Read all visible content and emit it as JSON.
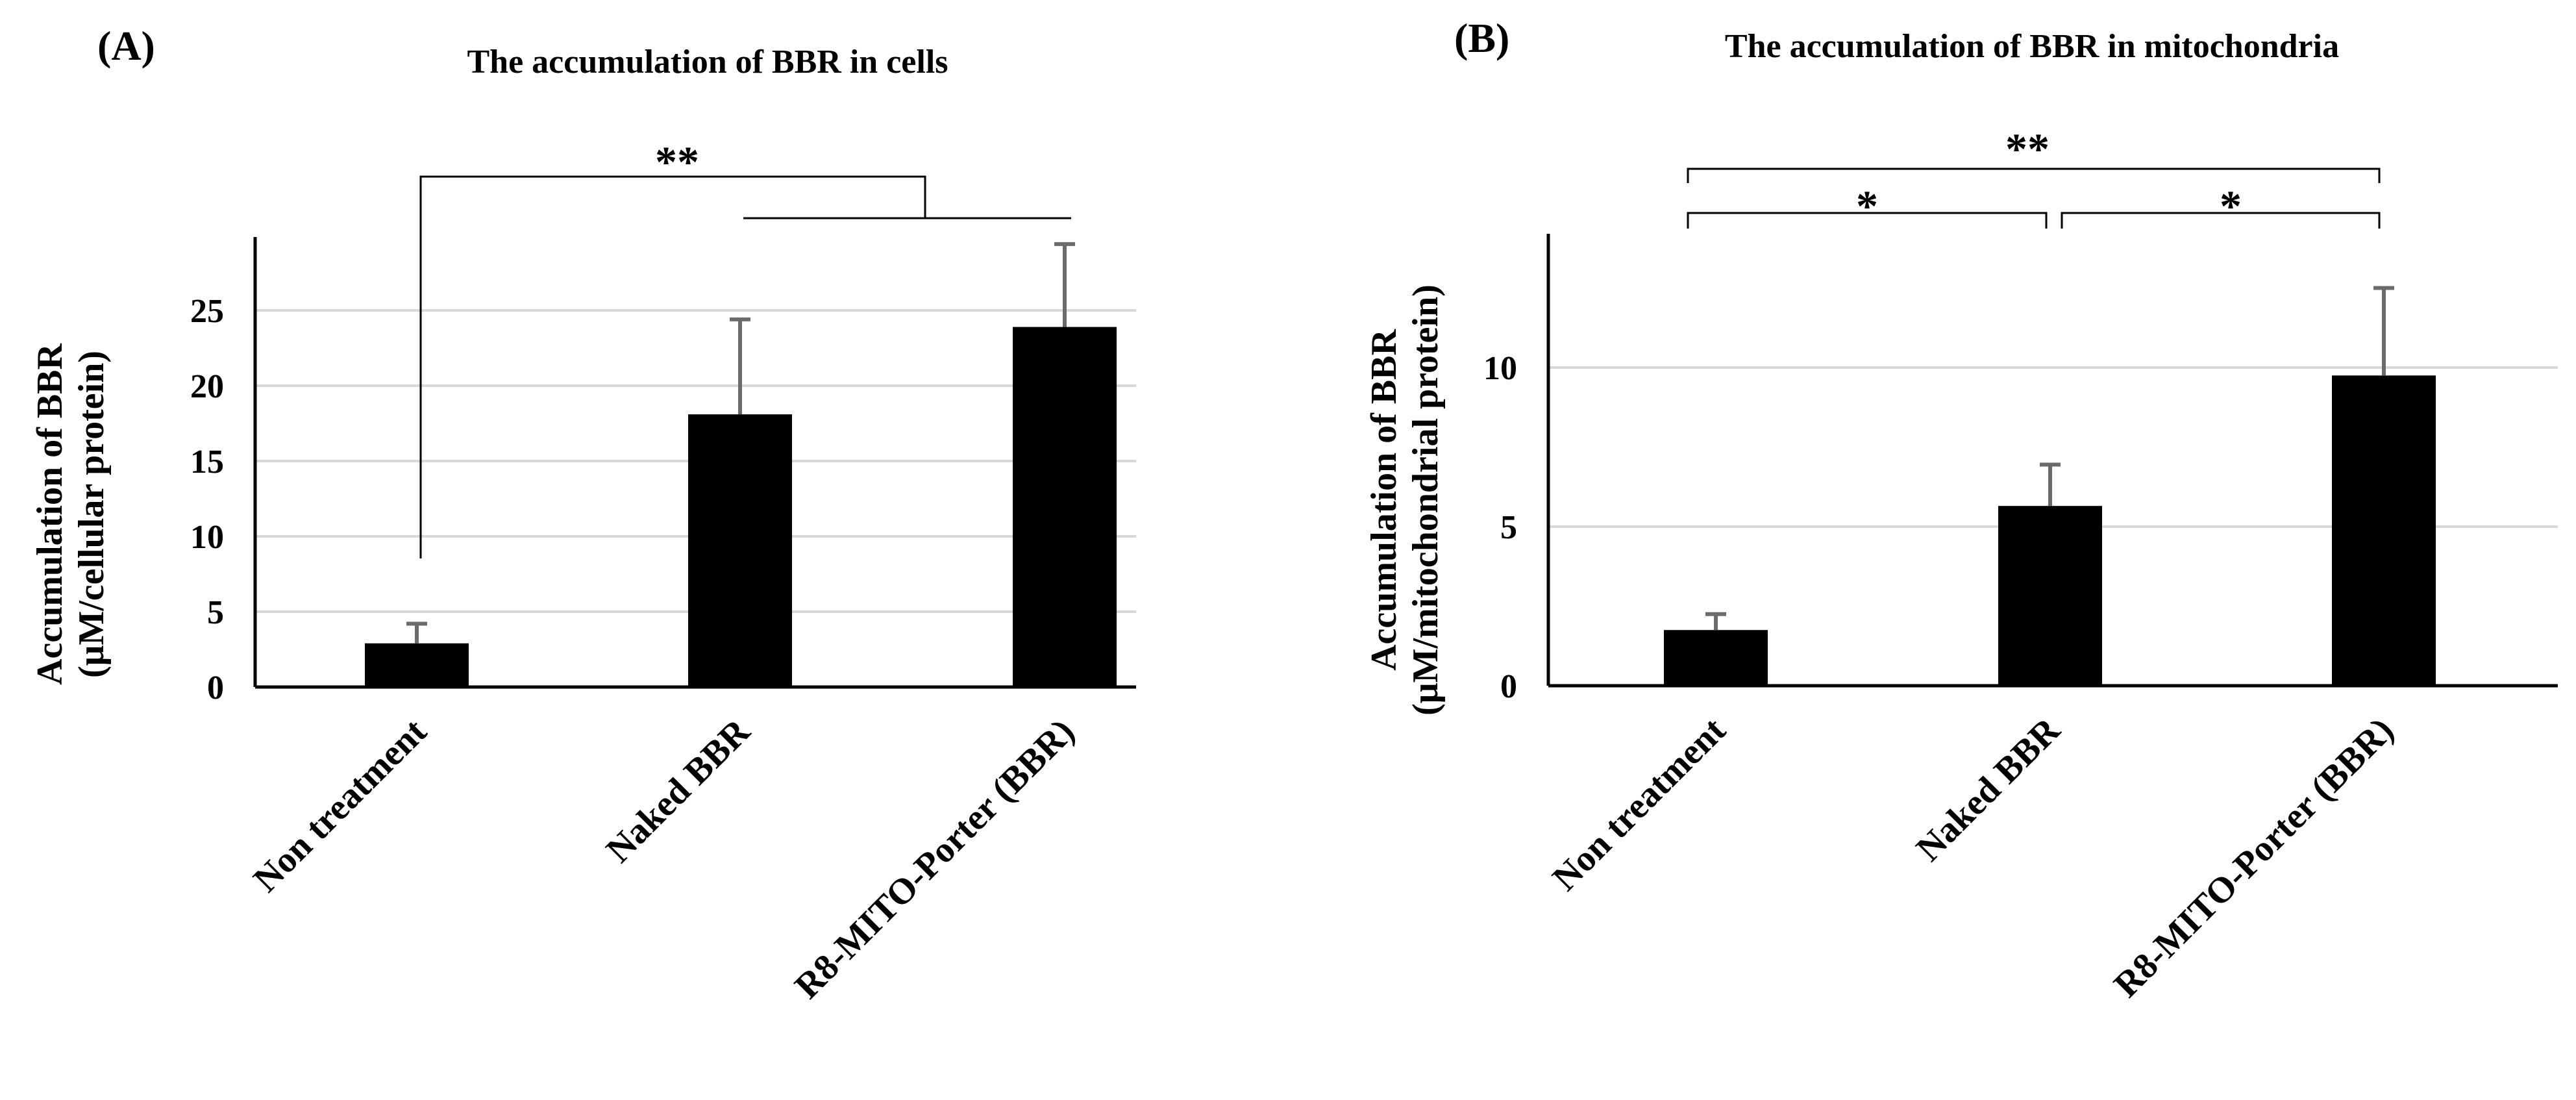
{
  "chart_data": [
    {
      "panel": "(A)",
      "type": "bar",
      "title": "The accumulation of BBR in  cells",
      "ylabel_line1": "Accumulation of BBR",
      "ylabel_line2": "(μM/cellular protein)",
      "categories": [
        "Non treatment",
        "Naked BBR",
        "R8-MITO-Porter (BBR)"
      ],
      "values": [
        2.9,
        18.1,
        23.9
      ],
      "errors": [
        1.3,
        6.3,
        5.5
      ],
      "yticks": [
        0,
        5,
        10,
        15,
        20,
        25
      ],
      "ylim": [
        0,
        29.5
      ],
      "bar_color": "#000000",
      "significance": [
        {
          "label": "**",
          "comparison": "Non treatment vs (Naked BBR, R8-MITO-Porter (BBR))"
        }
      ]
    },
    {
      "panel": "(B)",
      "type": "bar",
      "title": "The accumulation of BBR in  mitochondria",
      "ylabel_line1": "Accumulation of BBR",
      "ylabel_line2": "(μM/mitochondrial protein)",
      "categories": [
        "Non treatment",
        "Naked BBR",
        "R8-MITO-Porter (BBR)"
      ],
      "values": [
        1.75,
        5.65,
        9.75
      ],
      "errors": [
        0.5,
        1.3,
        2.75
      ],
      "yticks": [
        0,
        5,
        10
      ],
      "ylim": [
        0,
        14
      ],
      "bar_color": "#000000",
      "significance": [
        {
          "label": "**",
          "comparison": "Non treatment vs R8-MITO-Porter (BBR)"
        },
        {
          "label": "*",
          "comparison": "Non treatment vs Naked BBR"
        },
        {
          "label": "*",
          "comparison": "Naked BBR vs R8-MITO-Porter (BBR)"
        }
      ]
    }
  ]
}
